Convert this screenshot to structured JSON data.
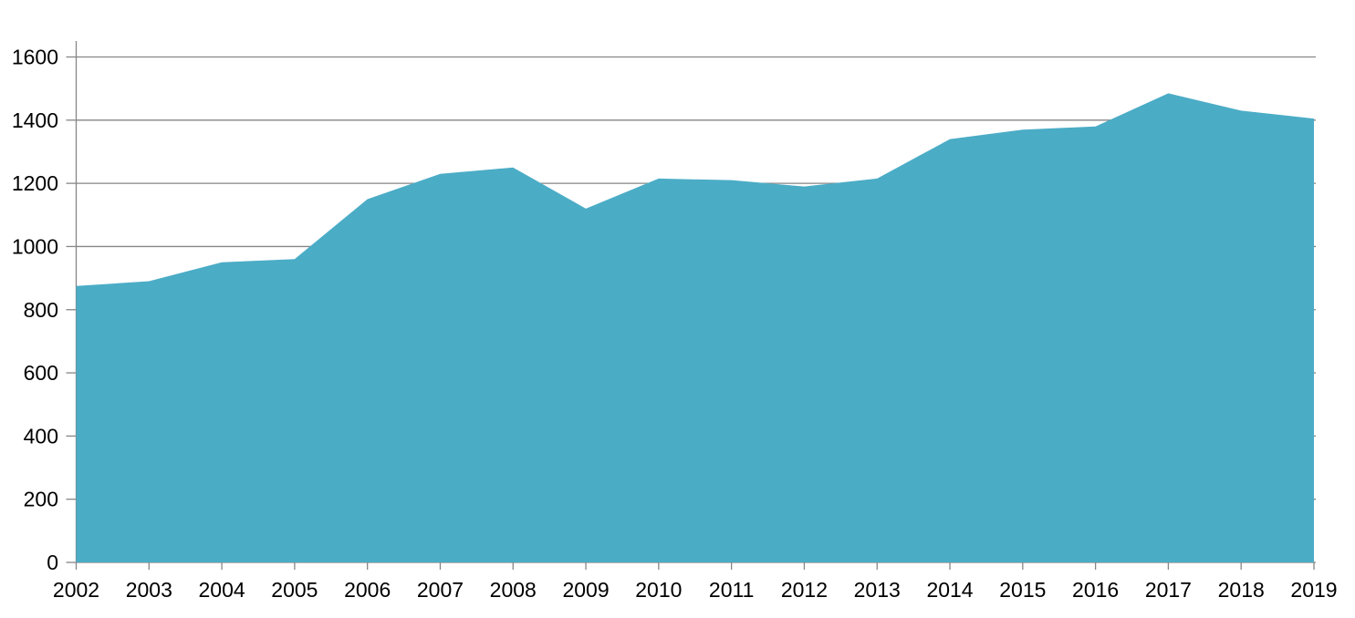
{
  "chart_data": {
    "type": "area",
    "title": "",
    "xlabel": "",
    "ylabel": "",
    "categories": [
      "2002",
      "2003",
      "2004",
      "2005",
      "2006",
      "2007",
      "2008",
      "2009",
      "2010",
      "2011",
      "2012",
      "2013",
      "2014",
      "2015",
      "2016",
      "2017",
      "2018",
      "2019"
    ],
    "series": [
      {
        "name": "value",
        "values": [
          875,
          890,
          950,
          960,
          1150,
          1230,
          1250,
          1120,
          1215,
          1210,
          1190,
          1215,
          1340,
          1370,
          1380,
          1485,
          1430,
          1405
        ]
      }
    ],
    "ylim": [
      0,
      1600
    ],
    "ytick_step": 200,
    "ytick_labels": [
      "0",
      "200",
      "400",
      "600",
      "800",
      "1000",
      "1200",
      "1400",
      "1600"
    ],
    "grid": true,
    "legend": false,
    "colors": {
      "area_fill": "#4BACC6",
      "gridline": "#868686",
      "axis_line": "#868686",
      "tick_mark": "#868686",
      "tick_label": "#000000",
      "background": "#ffffff"
    }
  }
}
